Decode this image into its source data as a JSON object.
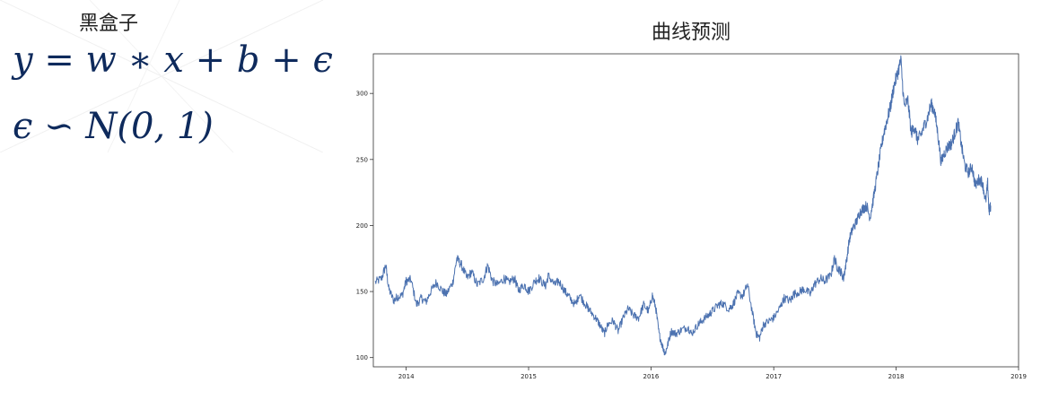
{
  "left": {
    "title": "黑盒子",
    "formula1": "y = w  ∗ x + b +  ϵ",
    "formula2": "ϵ  ∽ N(0, 1)"
  },
  "chart_data": {
    "type": "line",
    "title": "曲线预测",
    "xlabel": "",
    "ylabel": "",
    "x_ticks": [
      "2014",
      "2015",
      "2016",
      "2017",
      "2018",
      "2019"
    ],
    "y_ticks": [
      "100",
      "150",
      "200",
      "250",
      "300"
    ],
    "xlim": [
      "2013-09-25",
      "2019-01-01"
    ],
    "ylim": [
      93,
      330
    ],
    "grid": false,
    "line_color": "#4c72b0",
    "series": [
      {
        "x": [
          "2013-10-01",
          "2013-10-20",
          "2013-11-01",
          "2013-11-10",
          "2013-11-25",
          "2013-12-05",
          "2013-12-20",
          "2014-01-01",
          "2014-01-15",
          "2014-02-01",
          "2014-02-15",
          "2014-03-01",
          "2014-03-15",
          "2014-04-01",
          "2014-04-20",
          "2014-05-01",
          "2014-05-20",
          "2014-06-01",
          "2014-06-15",
          "2014-07-01",
          "2014-07-15",
          "2014-08-01",
          "2014-08-20",
          "2014-09-01",
          "2014-09-15",
          "2014-10-01",
          "2014-10-20",
          "2014-11-01",
          "2014-11-20",
          "2014-12-01",
          "2014-12-20",
          "2015-01-01",
          "2015-01-20",
          "2015-02-01",
          "2015-02-20",
          "2015-03-01",
          "2015-03-20",
          "2015-04-01",
          "2015-04-20",
          "2015-05-01",
          "2015-05-20",
          "2015-06-01",
          "2015-06-20",
          "2015-07-01",
          "2015-07-20",
          "2015-08-01",
          "2015-08-15",
          "2015-08-25",
          "2015-09-10",
          "2015-09-25",
          "2015-10-10",
          "2015-10-25",
          "2015-11-10",
          "2015-11-25",
          "2015-12-10",
          "2015-12-25",
          "2016-01-05",
          "2016-01-15",
          "2016-01-25",
          "2016-02-05",
          "2016-02-12",
          "2016-02-20",
          "2016-03-01",
          "2016-03-15",
          "2016-04-01",
          "2016-04-20",
          "2016-05-01",
          "2016-05-20",
          "2016-06-01",
          "2016-06-20",
          "2016-07-01",
          "2016-07-20",
          "2016-08-01",
          "2016-08-20",
          "2016-09-01",
          "2016-09-15",
          "2016-10-01",
          "2016-10-15",
          "2016-11-01",
          "2016-11-10",
          "2016-11-20",
          "2016-12-01",
          "2016-12-20",
          "2017-01-01",
          "2017-01-20",
          "2017-02-01",
          "2017-02-20",
          "2017-03-01",
          "2017-03-20",
          "2017-04-01",
          "2017-04-20",
          "2017-05-01",
          "2017-05-20",
          "2017-06-01",
          "2017-06-20",
          "2017-07-01",
          "2017-07-10",
          "2017-07-20",
          "2017-07-28",
          "2017-08-05",
          "2017-08-15",
          "2017-08-25",
          "2017-09-05",
          "2017-09-15",
          "2017-09-25",
          "2017-10-05",
          "2017-10-15",
          "2017-10-25",
          "2017-11-05",
          "2017-11-15",
          "2017-11-25",
          "2017-12-05",
          "2017-12-15",
          "2017-12-25",
          "2018-01-05",
          "2018-01-15",
          "2018-01-25",
          "2018-02-05",
          "2018-02-15",
          "2018-02-25",
          "2018-03-05",
          "2018-03-15",
          "2018-03-25",
          "2018-04-05",
          "2018-04-15",
          "2018-04-25",
          "2018-05-05",
          "2018-05-15",
          "2018-05-25",
          "2018-06-05",
          "2018-06-15",
          "2018-06-25",
          "2018-07-05",
          "2018-07-15",
          "2018-07-25",
          "2018-08-05",
          "2018-08-15",
          "2018-08-25",
          "2018-09-05",
          "2018-09-15",
          "2018-09-25",
          "2018-10-01",
          "2018-10-05",
          "2018-10-10"
        ],
        "values": [
          157,
          160,
          170,
          152,
          143,
          146,
          147,
          158,
          159,
          140,
          145,
          142,
          150,
          157,
          150,
          148,
          157,
          175,
          170,
          160,
          165,
          155,
          160,
          170,
          158,
          155,
          160,
          157,
          160,
          151,
          155,
          150,
          158,
          160,
          154,
          162,
          155,
          158,
          150,
          146,
          140,
          148,
          140,
          136,
          130,
          125,
          118,
          125,
          128,
          120,
          130,
          137,
          132,
          130,
          140,
          135,
          147,
          138,
          118,
          108,
          103,
          110,
          120,
          118,
          121,
          123,
          118,
          125,
          128,
          132,
          135,
          140,
          141,
          137,
          140,
          148,
          147,
          155,
          130,
          118,
          115,
          125,
          128,
          130,
          138,
          145,
          143,
          148,
          150,
          152,
          148,
          155,
          160,
          158,
          162,
          175,
          168,
          165,
          160,
          172,
          190,
          198,
          203,
          210,
          213,
          215,
          206,
          220,
          238,
          255,
          270,
          280,
          290,
          305,
          315,
          325,
          290,
          295,
          270,
          275,
          265,
          268,
          275,
          282,
          292,
          287,
          270,
          248,
          255,
          260,
          262,
          270,
          278,
          260,
          245,
          240,
          245,
          230,
          235,
          233,
          218,
          232,
          210,
          215
        ]
      }
    ]
  }
}
